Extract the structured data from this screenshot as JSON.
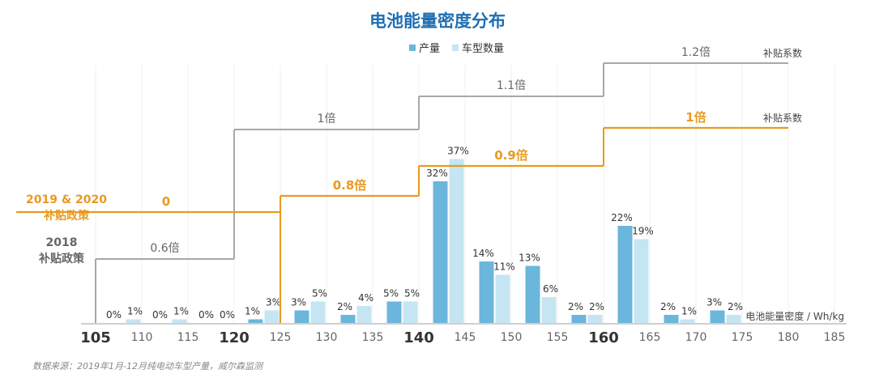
{
  "chart_data": {
    "type": "bar",
    "title": "电池能量密度分布",
    "xlabel": "电池能量密度 / Wh/kg",
    "x_ticks": [
      "105",
      "110",
      "115",
      "120",
      "125",
      "130",
      "135",
      "140",
      "145",
      "150",
      "155",
      "160",
      "165",
      "170",
      "175",
      "180",
      "185"
    ],
    "major_ticks": [
      "105",
      "120",
      "140",
      "160"
    ],
    "legend": {
      "position": "top-center",
      "items": [
        "产量",
        "车型数量"
      ]
    },
    "bins": [
      {
        "x_from": 105,
        "x_to": 110,
        "production": 0,
        "models": 1
      },
      {
        "x_from": 110,
        "x_to": 115,
        "production": 0,
        "models": 1
      },
      {
        "x_from": 115,
        "x_to": 120,
        "production": 0,
        "models": 0
      },
      {
        "x_from": 120,
        "x_to": 125,
        "production": 1,
        "models": 3
      },
      {
        "x_from": 125,
        "x_to": 130,
        "production": 3,
        "models": 5
      },
      {
        "x_from": 130,
        "x_to": 135,
        "production": 2,
        "models": 4
      },
      {
        "x_from": 135,
        "x_to": 140,
        "production": 5,
        "models": 5
      },
      {
        "x_from": 140,
        "x_to": 145,
        "production": 32,
        "models": 37
      },
      {
        "x_from": 145,
        "x_to": 150,
        "production": 14,
        "models": 11
      },
      {
        "x_from": 150,
        "x_to": 155,
        "production": 13,
        "models": 6
      },
      {
        "x_from": 155,
        "x_to": 160,
        "production": 2,
        "models": 2
      },
      {
        "x_from": 160,
        "x_to": 165,
        "production": 22,
        "models": 19
      },
      {
        "x_from": 165,
        "x_to": 170,
        "production": 2,
        "models": 1
      },
      {
        "x_from": 170,
        "x_to": 175,
        "production": 3,
        "models": 2
      }
    ],
    "ylim": [
      0,
      40
    ],
    "colors": {
      "production": "#6bb6dc",
      "models": "#c5e5f3",
      "policy2018": "#a8a8a8",
      "policy2019": "#e89a1e",
      "title": "#1f6fb2"
    },
    "policy_2018": {
      "label": "2018 补贴政策",
      "label_lines": [
        "2018",
        "补贴政策"
      ],
      "coef_label": "补贴系数",
      "steps": [
        {
          "from": 105,
          "to": 120,
          "label": "0.6倍"
        },
        {
          "from": 120,
          "to": 140,
          "label": "1倍"
        },
        {
          "from": 140,
          "to": 160,
          "label": "1.1倍"
        },
        {
          "from": 160,
          "to": 180,
          "label": "1.2倍"
        }
      ]
    },
    "policy_2019_2020": {
      "label": "2019 & 2020 补贴政策",
      "label_lines": [
        "2019 & 2020",
        "补贴政策"
      ],
      "coef_label": "补贴系数",
      "steps": [
        {
          "from": 105,
          "to": 125,
          "label": "0"
        },
        {
          "from": 125,
          "to": 140,
          "label": "0.8倍"
        },
        {
          "from": 140,
          "to": 160,
          "label": "0.9倍"
        },
        {
          "from": 160,
          "to": 180,
          "label": "1倍"
        }
      ]
    },
    "source": "数据来源：2019年1月-12月纯电动车型产量，威尔森监测"
  }
}
